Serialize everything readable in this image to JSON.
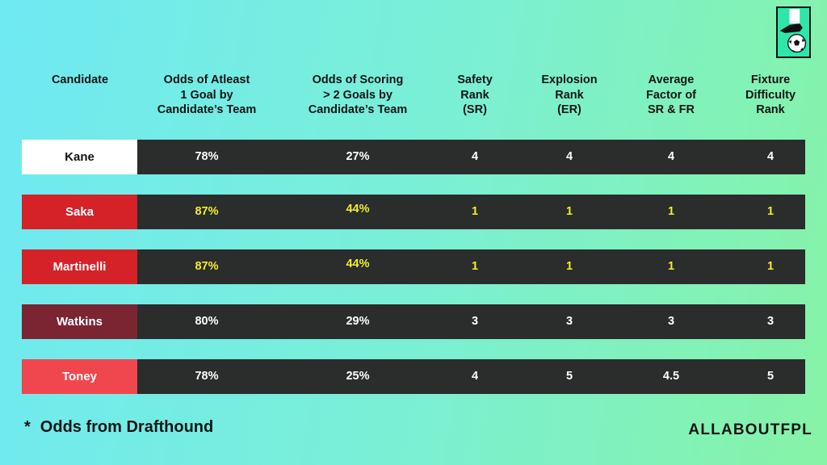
{
  "chart_data": {
    "type": "table",
    "columns": [
      "Candidate",
      "Odds of Atleast\n1 Goal by\nCandidate’s Team",
      "Odds of Scoring\n> 2 Goals by\nCandidate’s Team",
      "Safety\nRank\n(SR)",
      "Explosion\nRank\n(ER)",
      "Average\nFactor of\nSR & FR",
      "Fixture\nDifficulty\nRank"
    ],
    "rows": [
      {
        "candidate": "Kane",
        "name_bg": "#ffffff",
        "name_color": "#111111",
        "highlight": false,
        "values": [
          "78%",
          "27%",
          "4",
          "4",
          "4",
          "4"
        ]
      },
      {
        "candidate": "Saka",
        "name_bg": "#d42228",
        "name_color": "#ffffff",
        "highlight": true,
        "values": [
          "87%",
          "44%",
          "1",
          "1",
          "1",
          "1"
        ]
      },
      {
        "candidate": "Martinelli",
        "name_bg": "#d42228",
        "name_color": "#ffffff",
        "highlight": true,
        "values": [
          "87%",
          "44%",
          "1",
          "1",
          "1",
          "1"
        ]
      },
      {
        "candidate": "Watkins",
        "name_bg": "#7b2432",
        "name_color": "#ffffff",
        "highlight": false,
        "values": [
          "80%",
          "29%",
          "3",
          "3",
          "3",
          "3"
        ]
      },
      {
        "candidate": "Toney",
        "name_bg": "#f0474e",
        "name_color": "#ffffff",
        "highlight": false,
        "values": [
          "78%",
          "25%",
          "4",
          "5",
          "4.5",
          "5"
        ]
      }
    ]
  },
  "colors": {
    "data_bg": "#2b2c2c",
    "highlight_text": "#f3ee2a",
    "default_text": "#ffffff"
  },
  "footnote": {
    "star": "*",
    "text": "Odds from Drafthound"
  },
  "brand": "ALLABOUTFPL",
  "logo_icon": "football-boot-and-ball-icon"
}
